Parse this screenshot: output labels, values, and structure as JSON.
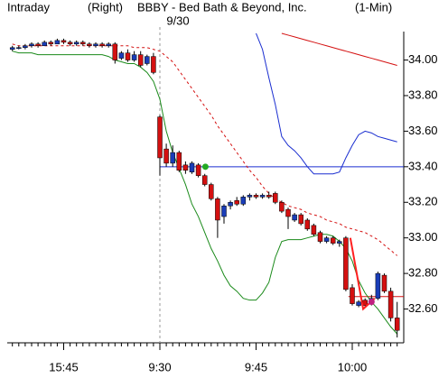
{
  "chart_data": {
    "type": "candlestick",
    "label": "Intraday",
    "scale_side": "(Right)",
    "title": "BBBY - Bed Bath & Beyond, Inc.",
    "interval": "(1-Min)",
    "date_label": "9/30",
    "categories": [
      null,
      null,
      null,
      null,
      null,
      null,
      null,
      null,
      "15:45",
      null,
      null,
      null,
      null,
      null,
      null,
      null,
      null,
      null,
      null,
      null,
      null,
      null,
      null,
      "9:30",
      null,
      null,
      null,
      null,
      null,
      null,
      null,
      null,
      null,
      null,
      null,
      null,
      null,
      null,
      "9:45",
      null,
      null,
      null,
      null,
      null,
      null,
      null,
      null,
      null,
      null,
      null,
      null,
      null,
      null,
      "10:00",
      null,
      null,
      null,
      null,
      null,
      null,
      null
    ],
    "session_break": 23,
    "ylim": [
      32.41,
      34.16
    ],
    "yticks": [
      {
        "value": 34.0,
        "label": "34.00"
      },
      {
        "value": 33.8,
        "label": "33.80"
      },
      {
        "value": 33.6,
        "label": "33.60"
      },
      {
        "value": 33.4,
        "label": "33.40"
      },
      {
        "value": 33.2,
        "label": "33.20"
      },
      {
        "value": 33.0,
        "label": "33.00"
      },
      {
        "value": 32.8,
        "label": "32.80"
      },
      {
        "value": 32.6,
        "label": "32.60"
      }
    ],
    "up_color": "#1a3db8",
    "down_color": "#d41010",
    "candles": [
      [
        34.06,
        34.08,
        34.05,
        34.07
      ],
      [
        34.07,
        34.08,
        34.06,
        34.07
      ],
      [
        34.07,
        34.09,
        34.06,
        34.08
      ],
      [
        34.08,
        34.1,
        34.07,
        34.09
      ],
      [
        34.09,
        34.1,
        34.07,
        34.08
      ],
      [
        34.08,
        34.11,
        34.08,
        34.1
      ],
      [
        34.1,
        34.11,
        34.08,
        34.09
      ],
      [
        34.09,
        34.12,
        34.09,
        34.11
      ],
      [
        34.11,
        34.12,
        34.09,
        34.1
      ],
      [
        34.1,
        34.11,
        34.08,
        34.09
      ],
      [
        34.09,
        34.11,
        34.08,
        34.1
      ],
      [
        34.1,
        34.11,
        34.08,
        34.09
      ],
      [
        34.09,
        34.1,
        34.07,
        34.08
      ],
      [
        34.08,
        34.1,
        34.07,
        34.09
      ],
      [
        34.09,
        34.1,
        34.07,
        34.08
      ],
      [
        34.08,
        34.1,
        34.07,
        34.09
      ],
      [
        34.09,
        34.1,
        33.98,
        34.0
      ],
      [
        34.01,
        34.05,
        34.0,
        34.04
      ],
      [
        34.04,
        34.06,
        33.99,
        34.0
      ],
      [
        34.0,
        34.05,
        33.99,
        34.03
      ],
      [
        34.03,
        34.05,
        33.96,
        33.97
      ],
      [
        33.98,
        34.03,
        33.97,
        34.02
      ],
      [
        34.02,
        34.04,
        33.92,
        33.93
      ],
      [
        33.68,
        33.69,
        33.35,
        33.45
      ],
      [
        33.5,
        33.53,
        33.4,
        33.42
      ],
      [
        33.42,
        33.52,
        33.4,
        33.48
      ],
      [
        33.48,
        33.49,
        33.37,
        33.38
      ],
      [
        33.41,
        33.43,
        33.36,
        33.38
      ],
      [
        33.37,
        33.43,
        33.36,
        33.42
      ],
      [
        33.41,
        33.42,
        33.34,
        33.35
      ],
      [
        33.35,
        33.36,
        33.29,
        33.3
      ],
      [
        33.3,
        33.31,
        33.21,
        33.22
      ],
      [
        33.22,
        33.23,
        33.0,
        33.1
      ],
      [
        33.12,
        33.19,
        33.08,
        33.18
      ],
      [
        33.18,
        33.21,
        33.16,
        33.2
      ],
      [
        33.21,
        33.23,
        33.18,
        33.19
      ],
      [
        33.19,
        33.24,
        33.18,
        33.23
      ],
      [
        33.23,
        33.25,
        33.21,
        33.24
      ],
      [
        33.24,
        33.25,
        33.22,
        33.23
      ],
      [
        33.23,
        33.25,
        33.22,
        33.24
      ],
      [
        33.24,
        33.26,
        33.22,
        33.23
      ],
      [
        33.25,
        33.26,
        33.19,
        33.2
      ],
      [
        33.2,
        33.21,
        33.14,
        33.15
      ],
      [
        33.16,
        33.17,
        33.05,
        33.12
      ],
      [
        33.1,
        33.14,
        33.09,
        33.13
      ],
      [
        33.13,
        33.14,
        33.07,
        33.08
      ],
      [
        33.1,
        33.11,
        33.04,
        33.05
      ],
      [
        33.07,
        33.08,
        33.01,
        33.02
      ],
      [
        33.03,
        33.04,
        32.97,
        32.98
      ],
      [
        32.98,
        33.01,
        32.97,
        33.0
      ],
      [
        33.0,
        33.01,
        32.96,
        32.97
      ],
      [
        32.97,
        32.99,
        32.95,
        32.98
      ],
      [
        33.0,
        33.01,
        32.7,
        32.71
      ],
      [
        32.72,
        32.74,
        32.62,
        32.63
      ],
      [
        32.62,
        32.65,
        32.61,
        32.64
      ],
      [
        32.65,
        32.66,
        32.61,
        32.62
      ],
      [
        32.63,
        32.68,
        32.62,
        32.66
      ],
      [
        32.66,
        32.81,
        32.65,
        32.8
      ],
      [
        32.79,
        32.8,
        32.69,
        32.7
      ],
      [
        32.7,
        32.72,
        32.53,
        32.55
      ],
      [
        32.55,
        32.64,
        32.44,
        32.48
      ]
    ],
    "lines": [
      {
        "color": "#1a8a1a",
        "dash": false,
        "values": [
          34.05,
          34.04,
          34.04,
          34.04,
          34.03,
          34.03,
          34.03,
          34.03,
          34.03,
          34.03,
          34.03,
          34.03,
          34.03,
          34.03,
          34.03,
          34.02,
          34.0,
          33.99,
          33.98,
          33.98,
          33.96,
          33.93,
          33.88,
          33.78,
          33.6,
          33.48,
          33.39,
          33.3,
          33.19,
          33.12,
          33.03,
          32.94,
          32.87,
          32.79,
          32.73,
          32.7,
          32.66,
          32.65,
          32.65,
          32.69,
          32.75,
          32.89,
          32.98,
          32.99,
          32.99,
          32.99,
          33.0,
          33.01,
          33.02,
          33.02,
          33.01,
          32.98,
          32.94,
          32.87,
          32.76,
          32.69,
          32.64,
          32.6,
          32.55,
          32.5,
          32.46
        ]
      },
      {
        "color": "#d41010",
        "dash": true,
        "values": [
          34.09,
          34.08,
          34.08,
          34.08,
          34.08,
          34.08,
          34.08,
          34.08,
          34.08,
          34.08,
          34.08,
          34.08,
          34.08,
          34.08,
          34.08,
          34.08,
          34.08,
          34.08,
          34.08,
          34.07,
          34.07,
          34.07,
          34.06,
          34.05,
          34.02,
          33.99,
          33.94,
          33.89,
          33.84,
          33.79,
          33.74,
          33.69,
          33.63,
          33.58,
          33.53,
          33.48,
          33.43,
          33.38,
          33.34,
          33.29,
          33.25,
          33.22,
          33.2,
          33.18,
          33.17,
          33.16,
          33.14,
          33.13,
          33.12,
          33.1,
          33.09,
          33.08,
          33.06,
          33.05,
          33.04,
          33.03,
          33.01,
          32.99,
          32.96,
          32.93,
          32.9
        ]
      },
      {
        "color": "#1a2ed0",
        "dash": false,
        "values": [
          null,
          null,
          null,
          null,
          null,
          null,
          null,
          null,
          null,
          null,
          null,
          null,
          null,
          null,
          null,
          null,
          null,
          null,
          null,
          null,
          null,
          null,
          null,
          null,
          null,
          null,
          null,
          null,
          null,
          null,
          null,
          null,
          null,
          null,
          null,
          null,
          null,
          null,
          34.15,
          34.06,
          33.9,
          33.75,
          33.57,
          33.52,
          33.49,
          33.45,
          33.4,
          33.36,
          33.36,
          33.36,
          33.36,
          33.37,
          33.45,
          33.52,
          33.58,
          33.6,
          33.59,
          33.57,
          33.56,
          33.55,
          33.54
        ]
      },
      {
        "color": "#d41010",
        "dash": false,
        "values": [
          null,
          null,
          null,
          null,
          null,
          null,
          null,
          null,
          null,
          null,
          null,
          null,
          null,
          null,
          null,
          null,
          null,
          null,
          null,
          null,
          null,
          null,
          null,
          null,
          null,
          null,
          null,
          null,
          null,
          null,
          null,
          null,
          null,
          null,
          null,
          null,
          null,
          null,
          null,
          null,
          null,
          null,
          34.15,
          34.14,
          34.13,
          34.12,
          34.11,
          34.1,
          34.09,
          34.08,
          34.07,
          34.06,
          34.05,
          34.04,
          34.03,
          34.02,
          34.01,
          34.0,
          33.99,
          33.98,
          33.97
        ]
      }
    ],
    "hlines": [
      {
        "value": 33.4,
        "color": "#1a2ed0",
        "from": 23
      },
      {
        "value": 32.67,
        "color": "#d41010",
        "from": 52.4
      }
    ],
    "trend": {
      "color": "#ff2020",
      "x": [
        52.7,
        54.7,
        56.5
      ],
      "values": [
        33.0,
        32.6,
        32.66
      ]
    },
    "markers": [
      {
        "x": 30.1,
        "value": 33.4,
        "color": "#22aa22"
      },
      {
        "x": 56.0,
        "value": 32.64,
        "color": "#c02080"
      }
    ]
  }
}
